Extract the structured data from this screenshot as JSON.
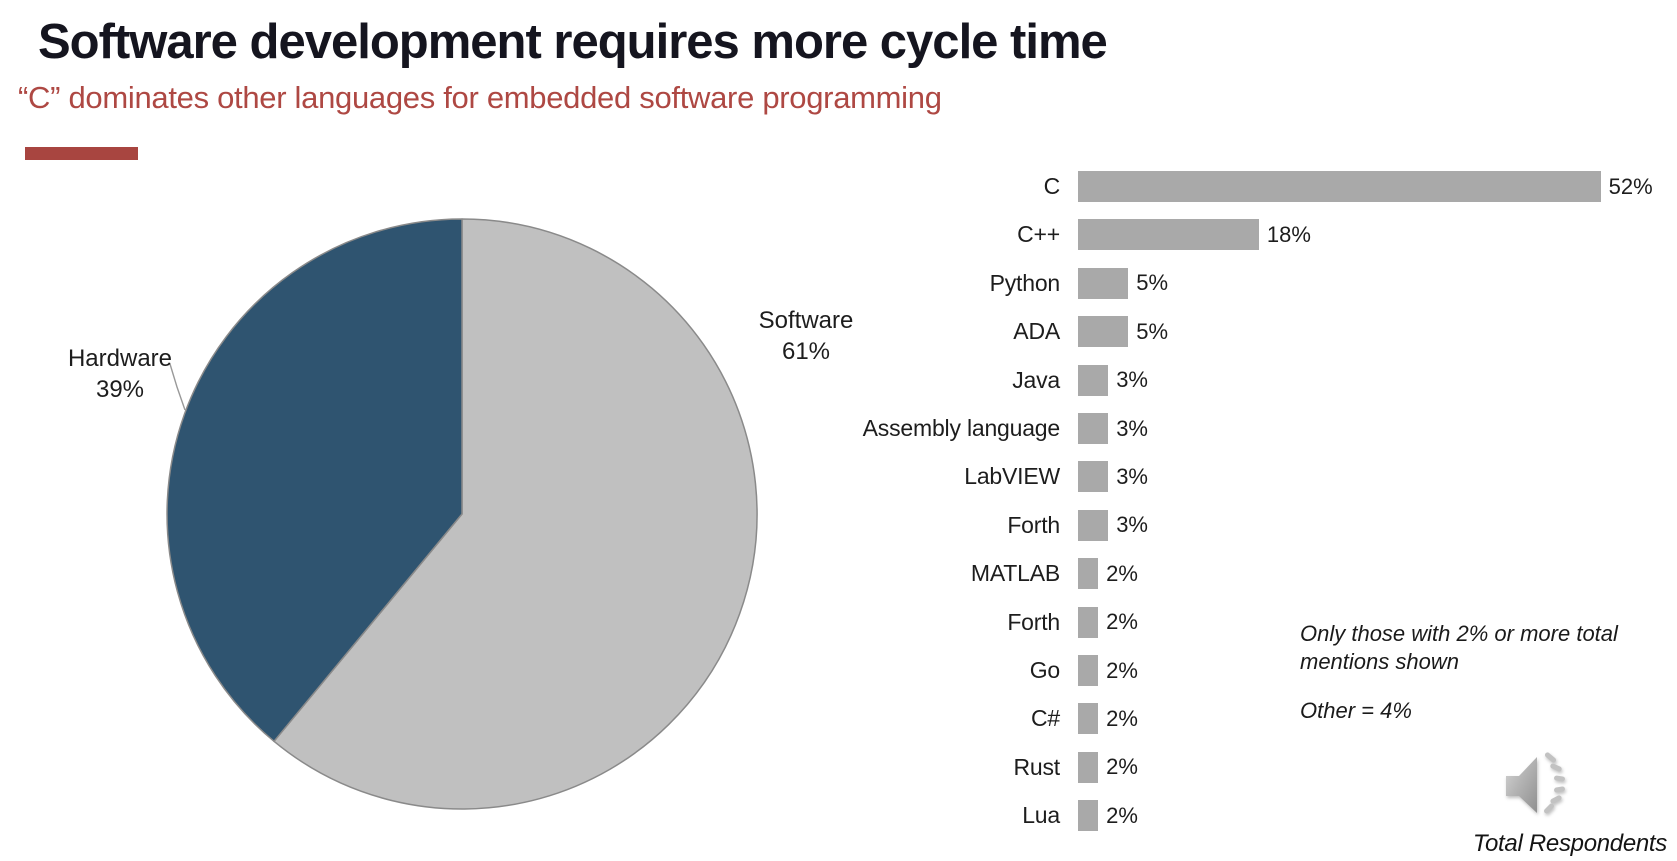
{
  "slide": {
    "title": "Software development requires more cycle time",
    "subtitle": "“C” dominates other languages for embedded software programming"
  },
  "colors": {
    "title_text": "#15151f",
    "accent_red": "#AE4843",
    "rule_red": "#A84540",
    "bar_gray": "#A9A9A9",
    "pie_gray": "#C0C0C0",
    "pie_blue": "#2F5470",
    "pie_stroke": "#8A8A8A",
    "chart_text": "#1D1D1D"
  },
  "chart_data": [
    {
      "type": "pie",
      "name": "engineering-time-split",
      "start_angle": "top",
      "direction": "clockwise",
      "labels_position": "outside",
      "slices": [
        {
          "label": "Software",
          "value": 61,
          "pct_label": "61%",
          "color_key": "pie_gray"
        },
        {
          "label": "Hardware",
          "value": 39,
          "pct_label": "39%",
          "color_key": "pie_blue"
        }
      ]
    },
    {
      "type": "bar",
      "name": "embedded-programming-languages",
      "orientation": "horizontal",
      "grid": false,
      "xlim": [
        0,
        55
      ],
      "value_suffix": "%",
      "value_labels": "outside-end",
      "bar_color_key": "bar_gray",
      "categories": [
        "C",
        "C++",
        "Python",
        "ADA",
        "Java",
        "Assembly language",
        "LabVIEW",
        "Forth",
        "MATLAB",
        "Forth",
        "Go",
        "C#",
        "Rust",
        "Lua"
      ],
      "values": [
        52,
        18,
        5,
        5,
        3,
        3,
        3,
        3,
        2,
        2,
        2,
        2,
        2,
        2
      ]
    }
  ],
  "notes": {
    "filter_note_line1": "Only those with 2% or more total",
    "filter_note_line2": "mentions shown",
    "other_note": "Other = 4%",
    "footer": "Total Respondents"
  }
}
